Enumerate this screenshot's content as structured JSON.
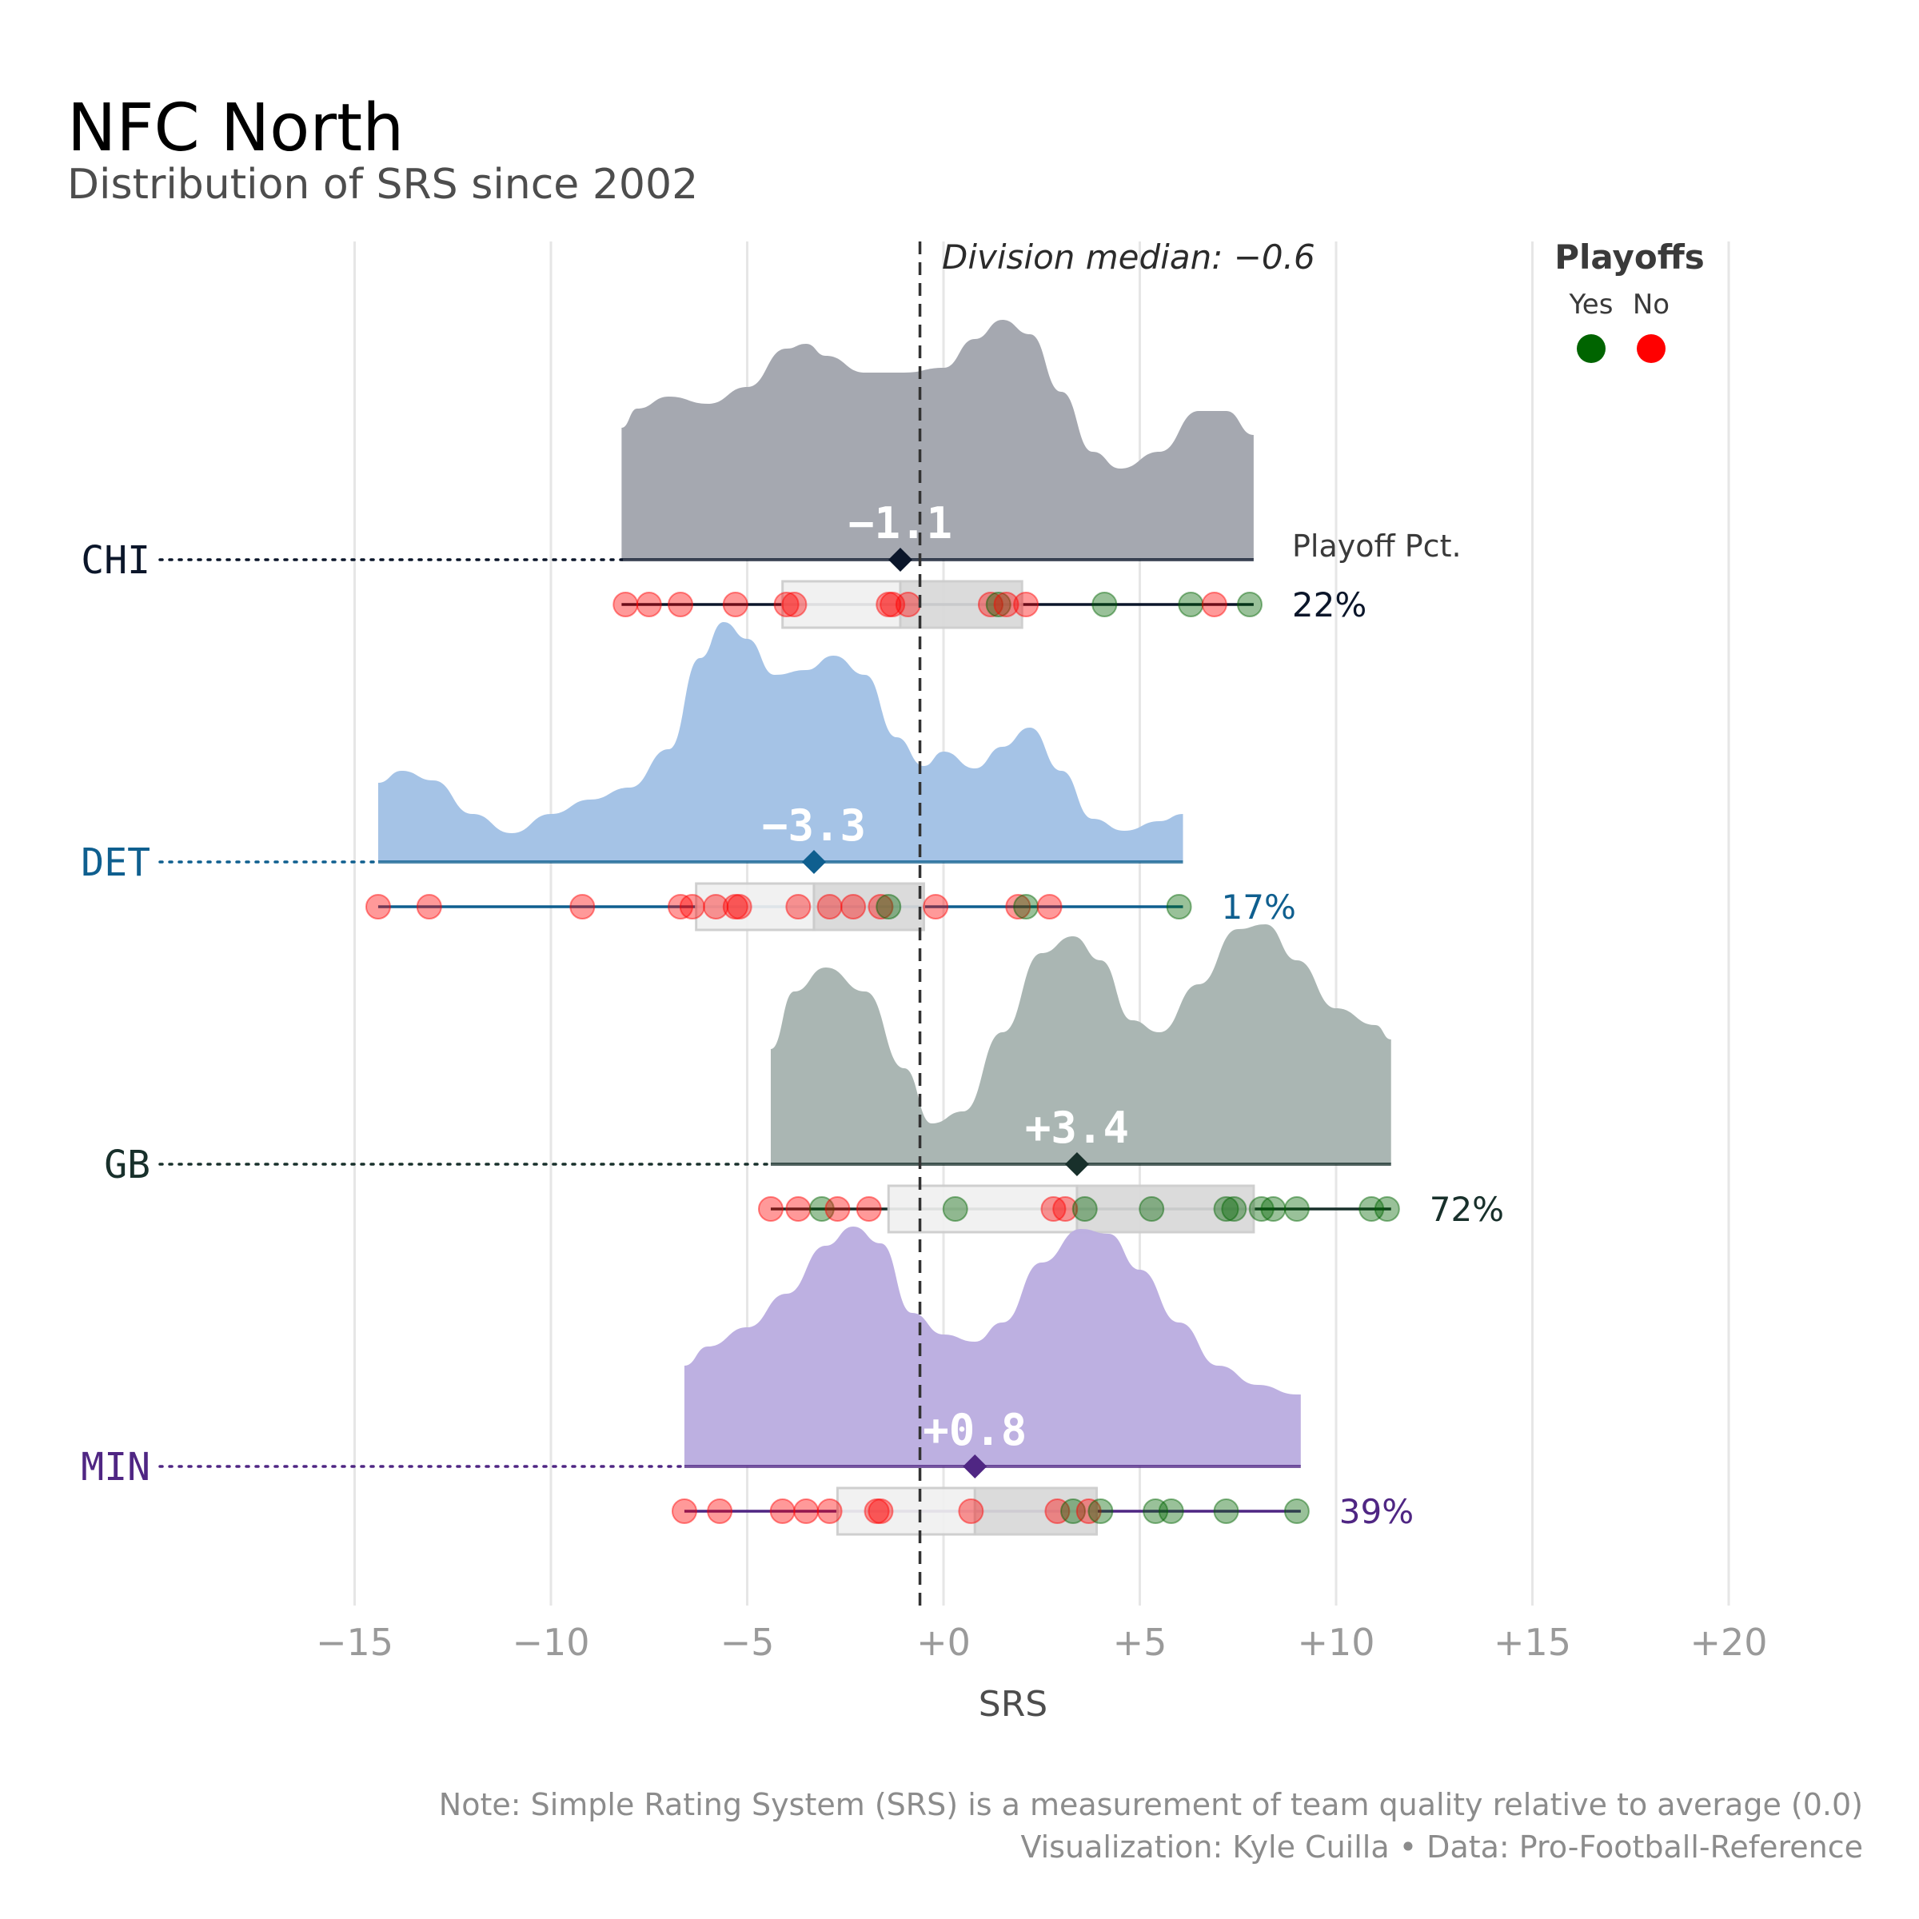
{
  "title": "NFC North",
  "subtitle": "Distribution of SRS since 2002",
  "caption": {
    "line1": "Note: Simple Rating System (SRS) is a measurement of team quality relative to average (0.0)",
    "line2": "Visualization: Kyle Cuilla  •  Data: Pro-Football-Reference"
  },
  "legend": {
    "title": "Playoffs",
    "yes_label": "Yes",
    "no_label": "No",
    "yes_color": "#006400",
    "no_color": "#ff0000"
  },
  "playoff_pct_header": "Playoff Pct.",
  "chart_data": {
    "type": "ridgeline",
    "xlabel": "SRS",
    "xlim": [
      -17,
      21.5
    ],
    "xticks": [
      -15,
      -10,
      -5,
      0,
      5,
      10,
      15,
      20
    ],
    "xtick_labels": [
      "−15",
      "−10",
      "−5",
      "+0",
      "+5",
      "+10",
      "+15",
      "+20"
    ],
    "grid": true,
    "legend_position": "top-right",
    "division_median": -0.6,
    "division_median_label": "Division median: −0.6",
    "teams": [
      {
        "name": "CHI",
        "color": "#0b162a",
        "fill": "#a3a6ae",
        "median": -1.1,
        "median_label": "−1.1",
        "q1": -4.1,
        "q3": 2.0,
        "min": -8.2,
        "max": 7.9,
        "playoff_pct": "22%",
        "density_range": [
          -8.2,
          7.9
        ],
        "density": [
          [
            -8.2,
            0.55
          ],
          [
            -7.8,
            0.63
          ],
          [
            -7.0,
            0.68
          ],
          [
            -6.0,
            0.65
          ],
          [
            -5.0,
            0.72
          ],
          [
            -4.0,
            0.88
          ],
          [
            -3.5,
            0.9
          ],
          [
            -3.0,
            0.85
          ],
          [
            -2.0,
            0.78
          ],
          [
            -1.0,
            0.78
          ],
          [
            0,
            0.8
          ],
          [
            0.8,
            0.92
          ],
          [
            1.5,
            1.0
          ],
          [
            2.2,
            0.94
          ],
          [
            3.0,
            0.7
          ],
          [
            3.8,
            0.45
          ],
          [
            4.5,
            0.38
          ],
          [
            5.5,
            0.45
          ],
          [
            6.5,
            0.62
          ],
          [
            7.2,
            0.62
          ],
          [
            7.9,
            0.52
          ]
        ],
        "points": [
          {
            "x": -8.1,
            "p": false
          },
          {
            "x": -7.5,
            "p": false
          },
          {
            "x": -6.7,
            "p": false
          },
          {
            "x": -5.3,
            "p": false
          },
          {
            "x": -4.0,
            "p": false
          },
          {
            "x": -3.8,
            "p": false
          },
          {
            "x": -1.4,
            "p": false
          },
          {
            "x": -1.3,
            "p": false
          },
          {
            "x": -0.9,
            "p": false
          },
          {
            "x": 1.2,
            "p": false
          },
          {
            "x": 1.4,
            "p": true
          },
          {
            "x": 1.6,
            "p": false
          },
          {
            "x": 2.1,
            "p": false
          },
          {
            "x": 4.1,
            "p": true
          },
          {
            "x": 6.3,
            "p": true
          },
          {
            "x": 6.9,
            "p": false
          },
          {
            "x": 7.8,
            "p": true
          }
        ]
      },
      {
        "name": "DET",
        "color": "#0f5f8f",
        "fill": "#a3c2e6",
        "median": -3.3,
        "median_label": "−3.3",
        "q1": -6.3,
        "q3": -0.5,
        "min": -14.4,
        "max": 6.1,
        "playoff_pct": "17%",
        "density_range": [
          -14.4,
          6.1
        ],
        "density": [
          [
            -14.4,
            0.33
          ],
          [
            -13.8,
            0.38
          ],
          [
            -13.0,
            0.34
          ],
          [
            -12.0,
            0.2
          ],
          [
            -11.0,
            0.12
          ],
          [
            -10.0,
            0.2
          ],
          [
            -9.0,
            0.26
          ],
          [
            -8.0,
            0.31
          ],
          [
            -7.0,
            0.47
          ],
          [
            -6.2,
            0.85
          ],
          [
            -5.6,
            1.0
          ],
          [
            -5.0,
            0.93
          ],
          [
            -4.3,
            0.78
          ],
          [
            -3.5,
            0.8
          ],
          [
            -2.8,
            0.86
          ],
          [
            -2.0,
            0.78
          ],
          [
            -1.2,
            0.52
          ],
          [
            -0.5,
            0.4
          ],
          [
            0.0,
            0.46
          ],
          [
            0.8,
            0.39
          ],
          [
            1.5,
            0.48
          ],
          [
            2.2,
            0.56
          ],
          [
            3.0,
            0.38
          ],
          [
            3.8,
            0.18
          ],
          [
            4.6,
            0.13
          ],
          [
            5.5,
            0.17
          ],
          [
            6.1,
            0.2
          ]
        ],
        "points": [
          {
            "x": -14.4,
            "p": false
          },
          {
            "x": -13.1,
            "p": false
          },
          {
            "x": -9.2,
            "p": false
          },
          {
            "x": -6.7,
            "p": false
          },
          {
            "x": -6.4,
            "p": false
          },
          {
            "x": -5.8,
            "p": false
          },
          {
            "x": -5.3,
            "p": false
          },
          {
            "x": -5.2,
            "p": false
          },
          {
            "x": -3.7,
            "p": false
          },
          {
            "x": -2.9,
            "p": false
          },
          {
            "x": -2.3,
            "p": false
          },
          {
            "x": -1.6,
            "p": false
          },
          {
            "x": -1.4,
            "p": true
          },
          {
            "x": -0.2,
            "p": false
          },
          {
            "x": 1.9,
            "p": false
          },
          {
            "x": 2.1,
            "p": true
          },
          {
            "x": 2.7,
            "p": false
          },
          {
            "x": 6.0,
            "p": true
          }
        ]
      },
      {
        "name": "GB",
        "color": "#18302b",
        "fill": "#a8b5b1",
        "median": 3.4,
        "median_label": "+3.4",
        "q1": -1.4,
        "q3": 7.9,
        "min": -4.4,
        "max": 11.4,
        "playoff_pct": "72%",
        "density_range": [
          -4.4,
          11.4
        ],
        "density": [
          [
            -4.4,
            0.48
          ],
          [
            -3.8,
            0.72
          ],
          [
            -3.0,
            0.82
          ],
          [
            -2.0,
            0.72
          ],
          [
            -1.0,
            0.4
          ],
          [
            -0.3,
            0.17
          ],
          [
            0.5,
            0.22
          ],
          [
            1.5,
            0.55
          ],
          [
            2.5,
            0.88
          ],
          [
            3.3,
            0.95
          ],
          [
            4.0,
            0.85
          ],
          [
            4.8,
            0.6
          ],
          [
            5.5,
            0.55
          ],
          [
            6.5,
            0.75
          ],
          [
            7.5,
            0.98
          ],
          [
            8.2,
            1.0
          ],
          [
            9.0,
            0.85
          ],
          [
            10.0,
            0.65
          ],
          [
            11.0,
            0.58
          ],
          [
            11.4,
            0.52
          ]
        ],
        "points": [
          {
            "x": -4.4,
            "p": false
          },
          {
            "x": -3.7,
            "p": false
          },
          {
            "x": -3.1,
            "p": true
          },
          {
            "x": -2.7,
            "p": false
          },
          {
            "x": -1.9,
            "p": false
          },
          {
            "x": 0.3,
            "p": true
          },
          {
            "x": 2.8,
            "p": false
          },
          {
            "x": 3.1,
            "p": false
          },
          {
            "x": 3.6,
            "p": true
          },
          {
            "x": 5.3,
            "p": true
          },
          {
            "x": 7.2,
            "p": true
          },
          {
            "x": 7.4,
            "p": true
          },
          {
            "x": 8.1,
            "p": true
          },
          {
            "x": 8.4,
            "p": true
          },
          {
            "x": 9.0,
            "p": true
          },
          {
            "x": 10.9,
            "p": true
          },
          {
            "x": 11.3,
            "p": true
          }
        ]
      },
      {
        "name": "MIN",
        "color": "#4f2683",
        "fill": "#bcaee0",
        "median": 0.8,
        "median_label": "+0.8",
        "q1": -2.7,
        "q3": 3.9,
        "min": -6.6,
        "max": 9.1,
        "playoff_pct": "39%",
        "density_range": [
          -6.6,
          9.1
        ],
        "density": [
          [
            -6.6,
            0.42
          ],
          [
            -6.0,
            0.5
          ],
          [
            -5.0,
            0.58
          ],
          [
            -4.0,
            0.72
          ],
          [
            -3.0,
            0.92
          ],
          [
            -2.3,
            1.0
          ],
          [
            -1.6,
            0.93
          ],
          [
            -0.8,
            0.64
          ],
          [
            0.0,
            0.55
          ],
          [
            0.8,
            0.52
          ],
          [
            1.5,
            0.6
          ],
          [
            2.5,
            0.85
          ],
          [
            3.5,
            0.99
          ],
          [
            4.2,
            0.97
          ],
          [
            5.0,
            0.82
          ],
          [
            6.0,
            0.6
          ],
          [
            7.0,
            0.42
          ],
          [
            8.0,
            0.34
          ],
          [
            9.0,
            0.3
          ],
          [
            9.1,
            0.3
          ]
        ],
        "points": [
          {
            "x": -6.6,
            "p": false
          },
          {
            "x": -5.7,
            "p": false
          },
          {
            "x": -4.1,
            "p": false
          },
          {
            "x": -3.5,
            "p": false
          },
          {
            "x": -2.9,
            "p": false
          },
          {
            "x": -1.7,
            "p": false
          },
          {
            "x": -1.6,
            "p": false
          },
          {
            "x": 0.7,
            "p": false
          },
          {
            "x": 2.9,
            "p": false
          },
          {
            "x": 3.3,
            "p": true
          },
          {
            "x": 3.7,
            "p": false
          },
          {
            "x": 4.0,
            "p": true
          },
          {
            "x": 5.4,
            "p": true
          },
          {
            "x": 5.8,
            "p": true
          },
          {
            "x": 7.2,
            "p": true
          },
          {
            "x": 9.0,
            "p": true
          }
        ]
      }
    ]
  }
}
